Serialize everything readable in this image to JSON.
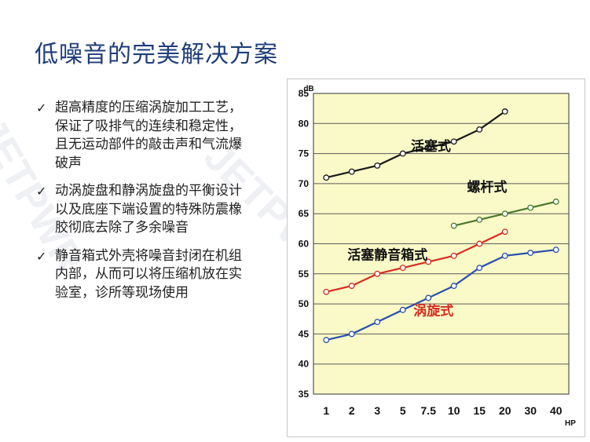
{
  "page": {
    "title": "低噪音的完美解决方案",
    "watermark": "JETPWR",
    "bullets": [
      "超高精度的压缩涡旋加工工艺，保证了吸排气的连续和稳定性，且无运动部件的敲击声和气流爆破声",
      "动涡旋盘和静涡旋盘的平衡设计以及底座下端设置的特殊防震橡胶彻底去除了多余噪音",
      "静音箱式外壳将噪音封闭在机组内部，从而可以将压缩机放在实验室，诊所等现场使用"
    ],
    "check_glyph": "✓"
  },
  "chart_data": {
    "type": "line",
    "title": "",
    "ylabel": "dB",
    "xlabel": "HP",
    "ylim": [
      35,
      85
    ],
    "yticks": [
      35,
      40,
      45,
      50,
      55,
      60,
      65,
      70,
      75,
      80,
      85
    ],
    "grid": true,
    "categories": [
      "1",
      "2",
      "3",
      "5",
      "7.5",
      "10",
      "15",
      "20",
      "30",
      "40"
    ],
    "colors": {
      "plot_bg": "#fafac8",
      "grid": "#5a5a5a",
      "marker_fill": "#ffffff"
    },
    "series": [
      {
        "name": "活塞式",
        "color": "#1a1a1a",
        "label_color": "#111111",
        "values": [
          71,
          72,
          73,
          75,
          76,
          77,
          79,
          82,
          null,
          null
        ],
        "label_at": [
          4.6,
          75.5
        ]
      },
      {
        "name": "螺杆式",
        "color": "#4a7a2c",
        "label_color": "#111111",
        "values": [
          null,
          null,
          null,
          null,
          null,
          63,
          64,
          65,
          66,
          67
        ],
        "label_at": [
          6.8,
          68.7
        ]
      },
      {
        "name": "活塞静音箱式",
        "color": "#d62c1f",
        "label_color": "#111111",
        "values": [
          52,
          53,
          55,
          56,
          57,
          58,
          60,
          62,
          null,
          null
        ],
        "label_at": [
          2.9,
          57.4
        ]
      },
      {
        "name": "涡旋式",
        "color": "#2a4fae",
        "label_color": "#d62c1f",
        "values": [
          44,
          45,
          47,
          49,
          51,
          53,
          56,
          58,
          58.5,
          59
        ],
        "label_at": [
          4.7,
          48.1
        ]
      }
    ]
  }
}
